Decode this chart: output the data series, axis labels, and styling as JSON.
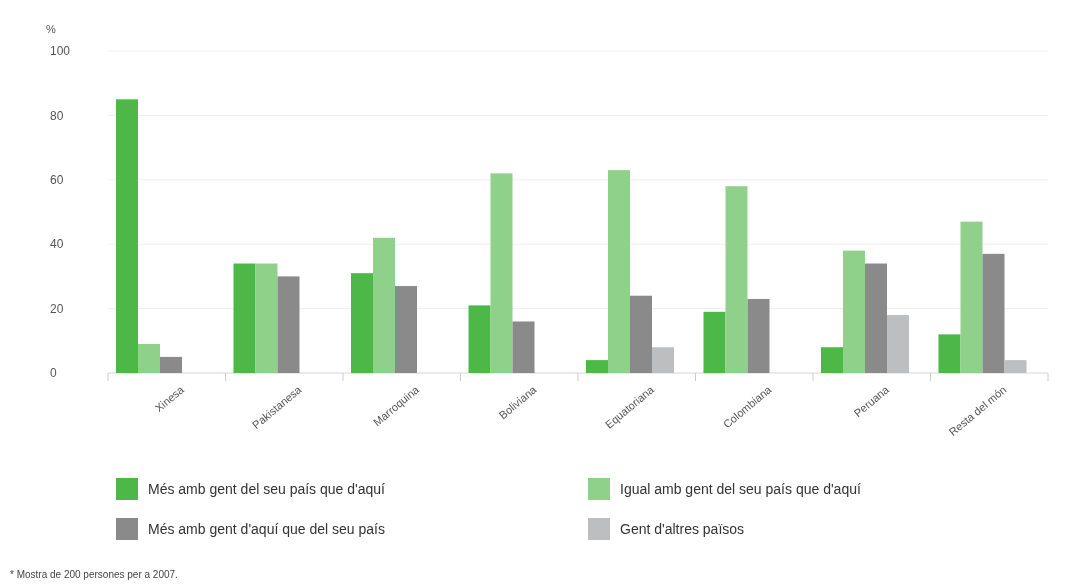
{
  "chart_data": {
    "type": "bar",
    "ylabel": "%",
    "categories": [
      "Xinesa",
      "Pakistanesa",
      "Marroquina",
      "Boliviana",
      "Equatoriana",
      "Colombiana",
      "Peruana",
      "Resta del món"
    ],
    "series": [
      {
        "name": "Més amb gent del seu país que d'aquí",
        "color": "#4db848",
        "values": [
          85,
          34,
          31,
          21,
          4,
          19,
          8,
          12
        ]
      },
      {
        "name": "Igual amb gent del seu país que d'aquí",
        "color": "#8fd18a",
        "values": [
          9,
          34,
          42,
          62,
          63,
          58,
          38,
          47
        ]
      },
      {
        "name": "Més amb gent d'aquí que del seu país",
        "color": "#8a8a8a",
        "values": [
          5,
          30,
          27,
          16,
          24,
          23,
          34,
          37
        ]
      },
      {
        "name": "Gent d'altres països",
        "color": "#bcbec0",
        "values": [
          null,
          null,
          null,
          null,
          8,
          null,
          18,
          4
        ]
      }
    ],
    "ylim": [
      0,
      100
    ],
    "yticks": [
      0,
      20,
      40,
      60,
      80,
      100
    ],
    "grid": "y",
    "legend": "bottom",
    "annotations": [
      "* Mostra de 200 persones per a 2007."
    ]
  }
}
